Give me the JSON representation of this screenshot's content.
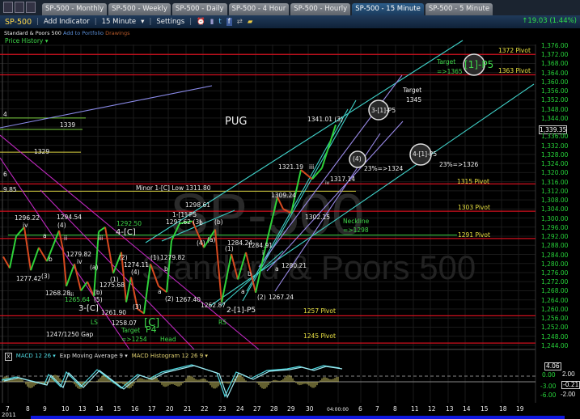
{
  "tabs": [
    "SP-500 - Monthly",
    "SP-500 - Weekly",
    "SP-500 - Daily",
    "SP-500 - 4 Hour",
    "SP-500 - Hourly",
    "SP-500 - 15 Minute",
    "SP-500 - 5 Minute"
  ],
  "active_tab": "SP-500 - 15 Minute",
  "toolbar": {
    "symbol": "SP-500",
    "add_indicator": "Add Indicator",
    "interval": "15 Minute",
    "settings": "Settings",
    "change": "↑19.03 (1.44%)"
  },
  "subheader": {
    "name": "Standard & Poors 500",
    "add_portfolio": "Add to Portfolio",
    "drawings": "Drawings"
  },
  "price_history": "Price History ▾",
  "watermark": {
    "symbol": "SP-500",
    "name": "Standard & Poors 500"
  },
  "price_axis": [
    "1,376.00",
    "1,372.00",
    "1,368.00",
    "1,364.00",
    "1,360.00",
    "1,356.00",
    "1,352.00",
    "1,348.00",
    "1,344.00",
    "1,339.35",
    "1,336.00",
    "1,332.00",
    "1,328.00",
    "1,324.00",
    "1,320.00",
    "1,316.00",
    "1,312.00",
    "1,308.00",
    "1,304.00",
    "1,300.00",
    "1,296.00",
    "1,292.00",
    "1,288.00",
    "1,284.00",
    "1,280.00",
    "1,276.00",
    "1,272.00",
    "1,268.00",
    "1,264.00",
    "1,260.00",
    "1,256.00",
    "1,252.00",
    "1,248.00",
    "1,244.00"
  ],
  "current_price": "1,339.35",
  "pivots": [
    {
      "label": "1372 Pivot",
      "price": 1372
    },
    {
      "label": "1363 Pivot",
      "price": 1363
    },
    {
      "label": "1315 Pivot",
      "price": 1315
    },
    {
      "label": "1303 Pivot",
      "price": 1303
    },
    {
      "label": "1291 Pivot",
      "price": 1291
    },
    {
      "label": "1257 Pivot",
      "price": 1257
    },
    {
      "label": "1245 Pivot",
      "price": 1245
    }
  ],
  "annotations": [
    "PUG",
    "1341.01 (3)",
    "Target",
    "1345",
    "3-[1]-P5",
    "Target",
    "=>1365",
    "[1]-P5",
    "(4)",
    "23%=>1324",
    "4-[1]-P5",
    "23%=>1326",
    "1321.19",
    "iii",
    "1317.14",
    "iv",
    "1309.24",
    "1302.15",
    "Neckline",
    "=>1298",
    "Minor 1-[C] Low 1311.80",
    "9.85",
    "6",
    "4",
    "1339",
    "1329",
    "1298.61",
    "1-[1]-P5",
    "1297.62 (3)",
    "b",
    "(b)",
    "1296.22",
    "iv",
    "1294.54",
    "(4)",
    "1292.50",
    "4-[C]",
    "a",
    "ii",
    "iii",
    "(a)",
    "(4)",
    "1284.24",
    "(1)",
    "1284.91",
    "i",
    "b",
    "1279.82",
    "iv",
    "(2)",
    "(a)",
    "1274.11",
    "(4)",
    "(1)",
    "1279.82",
    "b",
    "1280.21",
    "a",
    "1277.42",
    "(3)",
    "(1)",
    "1275.68",
    "b",
    "1268.28",
    "iii",
    "(b)",
    "a",
    "a",
    "1265.64",
    "(5)",
    "(2)",
    "1267.40",
    "(2)",
    "1267.24",
    "3-[C]",
    "(3)",
    "1262.87",
    "2-[1]-P5",
    "1261.90",
    "LS",
    "1258.07",
    "[C]",
    "RS",
    "Target",
    "P4",
    "=>1254",
    "Head",
    "1247/1250 Gap"
  ],
  "macd": {
    "label1": "MACD 12 26 ▾",
    "label2": "Exp Moving Average 9 ▾",
    "label3": "MACD Histogram 12 26 9 ▾",
    "axis": [
      "4.06",
      "2.00",
      "0.00",
      "-0.21",
      "-3.00",
      "-6.00",
      "-2.00"
    ]
  },
  "date_axis": [
    "7",
    "8",
    "9",
    "10",
    "13",
    "14",
    "15",
    "16",
    "17",
    "20",
    "21",
    "22",
    "23",
    "24",
    "27",
    "28",
    "29",
    "30",
    "04:00:00",
    "6",
    "7",
    "8",
    "11",
    "12",
    "13",
    "14",
    "15",
    "18",
    "19"
  ],
  "year": "2011",
  "colors": {
    "pivot": "#d0101e",
    "pivot_label": "#e8e040",
    "price_axis": "#27d43a",
    "up": "#2fd23a",
    "down": "#d84a20",
    "channel": "#3fd0c8",
    "fan": "#9a8ae8",
    "wedge": "#c028c0"
  }
}
